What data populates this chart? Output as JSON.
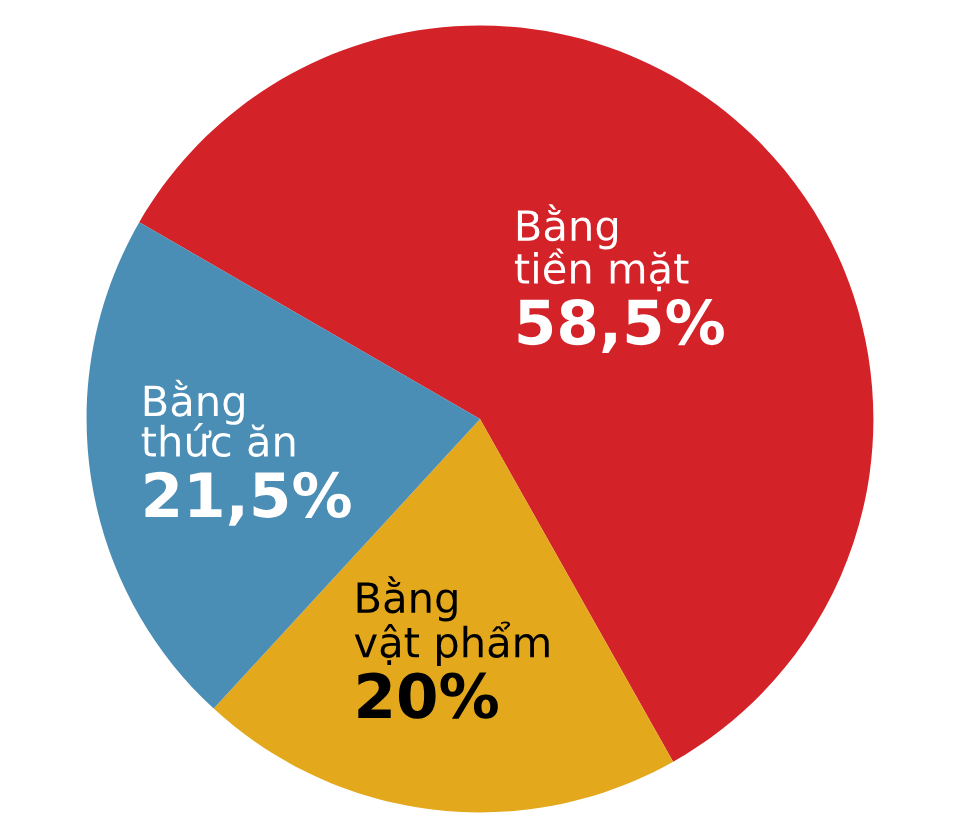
{
  "chart_data": {
    "type": "pie",
    "categories": [
      "Bằng tiền mặt",
      "Bằng vật phẩm",
      "Bằng thức ăn"
    ],
    "values": [
      58.5,
      20,
      21.5
    ],
    "value_labels": [
      "58,5%",
      "20%",
      "21,5%"
    ],
    "colors": [
      "#d42229",
      "#e3a81b",
      "#4a8db5"
    ]
  }
}
